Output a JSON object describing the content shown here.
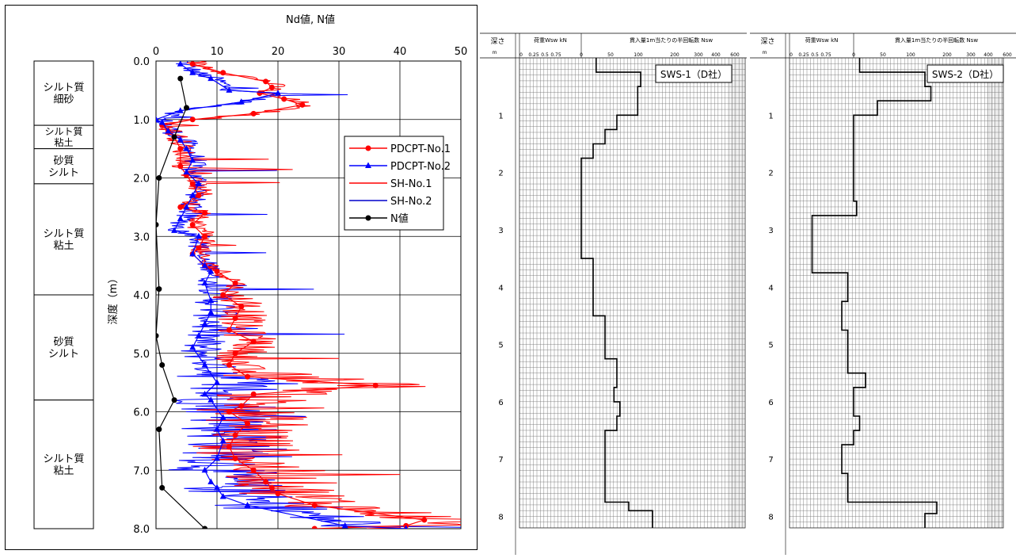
{
  "left_chart": {
    "xlabel": "Nd値, N値",
    "ylabel": "深度（m）",
    "strata": [
      {
        "name": "シルト質\n細砂",
        "top": 0.0,
        "bottom": 1.1
      },
      {
        "name": "シルト質\n粘土",
        "top": 1.1,
        "bottom": 1.5
      },
      {
        "name": "砂質\nシルト",
        "top": 1.5,
        "bottom": 2.1
      },
      {
        "name": "シルト質\n粘土",
        "top": 2.1,
        "bottom": 4.0
      },
      {
        "name": "砂質\nシルト",
        "top": 4.0,
        "bottom": 5.8
      },
      {
        "name": "シルト質\n粘土",
        "top": 5.8,
        "bottom": 8.0
      }
    ],
    "legend": [
      "PDCPT-No.1",
      "PDCPT-No.2",
      "SH-No.1",
      "SH-No.2",
      "N値"
    ]
  },
  "chart_data": [
    {
      "type": "line",
      "title": "",
      "xlabel": "Nd値, N値",
      "ylabel": "深度（m）",
      "xlim": [
        0,
        50
      ],
      "ylim": [
        0,
        8
      ],
      "y_inverted": true,
      "x_ticks": [
        "0",
        "10",
        "20",
        "30",
        "40",
        "50"
      ],
      "y_ticks": [
        "0.0",
        "1.0",
        "2.0",
        "3.0",
        "4.0",
        "5.0",
        "6.0",
        "7.0",
        "8.0"
      ],
      "grid": true,
      "legend_position": "right-upper",
      "colors": {
        "PDCPT-No.1": "#ff0000",
        "PDCPT-No.2": "#0000ff",
        "SH-No.1": "#ff0000",
        "SH-No.2": "#0000cc",
        "N値": "#000000"
      },
      "series": [
        {
          "name": "N値",
          "marker": "circle",
          "points": [
            [
              4,
              0.3
            ],
            [
              5,
              0.8
            ],
            [
              3,
              1.3
            ],
            [
              0.5,
              2.0
            ],
            [
              0,
              2.8
            ],
            [
              0.5,
              3.9
            ],
            [
              0,
              4.7
            ],
            [
              1,
              5.2
            ],
            [
              3,
              5.8
            ],
            [
              0.5,
              6.3
            ],
            [
              1,
              7.3
            ],
            [
              8,
              8.0
            ]
          ]
        },
        {
          "name": "PDCPT-No.1",
          "marker": "circle",
          "points": [
            [
              6,
              0.05
            ],
            [
              11,
              0.2
            ],
            [
              18,
              0.35
            ],
            [
              19,
              0.45
            ],
            [
              17,
              0.55
            ],
            [
              21,
              0.65
            ],
            [
              24,
              0.75
            ],
            [
              16,
              0.9
            ],
            [
              6,
              1.0
            ],
            [
              1,
              1.1
            ],
            [
              2,
              1.2
            ],
            [
              3,
              1.3
            ],
            [
              4,
              1.5
            ],
            [
              4,
              1.8
            ],
            [
              5,
              1.95
            ],
            [
              6,
              2.1
            ],
            [
              7,
              2.3
            ],
            [
              4,
              2.5
            ],
            [
              8,
              2.6
            ],
            [
              6,
              2.8
            ],
            [
              8,
              3.0
            ],
            [
              7,
              3.2
            ],
            [
              6,
              3.3
            ],
            [
              8,
              3.5
            ],
            [
              10,
              3.6
            ],
            [
              13,
              3.8
            ],
            [
              11,
              4.0
            ],
            [
              14,
              4.2
            ],
            [
              13,
              4.4
            ],
            [
              12,
              4.6
            ],
            [
              16,
              4.8
            ],
            [
              13,
              5.0
            ],
            [
              12,
              5.2
            ],
            [
              15,
              5.4
            ],
            [
              36,
              5.55
            ],
            [
              16,
              5.7
            ],
            [
              14,
              5.9
            ],
            [
              12,
              6.0
            ],
            [
              15,
              6.2
            ],
            [
              13,
              6.4
            ],
            [
              12,
              6.6
            ],
            [
              13,
              6.8
            ],
            [
              16,
              7.0
            ],
            [
              18,
              7.2
            ],
            [
              19,
              7.3
            ],
            [
              20,
              7.4
            ],
            [
              26,
              7.6
            ],
            [
              44,
              7.85
            ],
            [
              41,
              7.95
            ],
            [
              26,
              8.0
            ]
          ]
        },
        {
          "name": "PDCPT-No.2",
          "marker": "triangle",
          "points": [
            [
              4,
              0.05
            ],
            [
              6,
              0.2
            ],
            [
              9,
              0.3
            ],
            [
              12,
              0.5
            ],
            [
              20,
              0.55
            ],
            [
              14,
              0.7
            ],
            [
              4,
              0.85
            ],
            [
              0,
              1.0
            ],
            [
              1,
              1.05
            ],
            [
              2,
              1.2
            ],
            [
              4,
              1.35
            ],
            [
              5,
              1.5
            ],
            [
              6,
              1.7
            ],
            [
              5,
              1.9
            ],
            [
              7,
              2.1
            ],
            [
              6,
              2.3
            ],
            [
              5,
              2.5
            ],
            [
              4,
              2.7
            ],
            [
              3,
              2.9
            ],
            [
              7,
              3.0
            ],
            [
              6,
              3.3
            ],
            [
              8,
              3.5
            ],
            [
              9,
              3.6
            ],
            [
              8,
              3.8
            ],
            [
              9,
              4.1
            ],
            [
              9,
              4.3
            ],
            [
              8,
              4.5
            ],
            [
              7,
              4.7
            ],
            [
              6,
              4.9
            ],
            [
              8,
              5.2
            ],
            [
              10,
              5.5
            ],
            [
              8,
              5.7
            ],
            [
              9,
              5.8
            ],
            [
              11,
              6.1
            ],
            [
              10,
              6.3
            ],
            [
              11,
              6.5
            ],
            [
              10,
              6.8
            ],
            [
              8,
              7.0
            ],
            [
              9,
              7.2
            ],
            [
              10,
              7.3
            ],
            [
              11,
              7.45
            ],
            [
              15,
              7.6
            ],
            [
              31,
              7.95
            ],
            [
              41,
              8.0
            ]
          ]
        }
      ]
    },
    {
      "type": "line",
      "title": "SWS-1（D社）",
      "xlabel": "貫入量1m当たりの半回転数 Nsw",
      "ylabel": "深さ",
      "ylim": [
        0,
        8.2
      ],
      "y_inverted": true,
      "load_axis_label": "荷重Wsw kN",
      "load_ticks": [
        "0",
        "0.25",
        "0.5",
        "0.75"
      ],
      "nsw_ticks": [
        "0",
        "50",
        "100",
        "200",
        "300",
        "400",
        "600"
      ],
      "y_ticks": [
        "1",
        "2",
        "3",
        "4",
        "5",
        "6",
        "7",
        "8"
      ],
      "depth_unit": "m",
      "steps": [
        [
          25,
          0.0
        ],
        [
          25,
          0.25
        ],
        [
          100,
          0.25
        ],
        [
          100,
          0.5
        ],
        [
          95,
          0.5
        ],
        [
          95,
          1.0
        ],
        [
          60,
          1.0
        ],
        [
          60,
          1.25
        ],
        [
          40,
          1.25
        ],
        [
          40,
          1.5
        ],
        [
          20,
          1.5
        ],
        [
          20,
          1.75
        ],
        [
          0,
          1.75
        ],
        [
          0,
          3.5
        ],
        [
          20,
          3.5
        ],
        [
          20,
          4.5
        ],
        [
          40,
          4.5
        ],
        [
          40,
          5.25
        ],
        [
          60,
          5.25
        ],
        [
          60,
          5.75
        ],
        [
          55,
          5.75
        ],
        [
          55,
          6.0
        ],
        [
          65,
          6.0
        ],
        [
          65,
          6.25
        ],
        [
          60,
          6.25
        ],
        [
          60,
          6.5
        ],
        [
          40,
          6.5
        ],
        [
          40,
          7.75
        ],
        [
          80,
          7.75
        ],
        [
          80,
          7.9
        ],
        [
          120,
          7.9
        ],
        [
          120,
          8.2
        ]
      ]
    },
    {
      "type": "line",
      "title": "SWS-2（D社）",
      "xlabel": "貫入量1m当たりの半回転数 Nsw",
      "ylabel": "深さ",
      "ylim": [
        0,
        8.2
      ],
      "y_inverted": true,
      "load_axis_label": "荷重Wsw kN",
      "load_ticks": [
        "0",
        "0.25",
        "0.5",
        "0.75"
      ],
      "nsw_ticks": [
        "0",
        "50",
        "100",
        "200",
        "300",
        "400",
        "600"
      ],
      "y_ticks": [
        "1",
        "2",
        "3",
        "4",
        "5",
        "6",
        "7",
        "8"
      ],
      "depth_unit": "m",
      "steps": [
        [
          10,
          0.0
        ],
        [
          10,
          0.25
        ],
        [
          120,
          0.25
        ],
        [
          120,
          0.5
        ],
        [
          130,
          0.5
        ],
        [
          130,
          0.75
        ],
        [
          40,
          0.75
        ],
        [
          40,
          1.0
        ],
        [
          0,
          1.0
        ],
        [
          0,
          2.5
        ],
        [
          5,
          2.5
        ],
        [
          5,
          2.75
        ],
        [
          -70,
          2.75
        ],
        [
          -70,
          3.75
        ],
        [
          -10,
          3.75
        ],
        [
          -10,
          4.25
        ],
        [
          -20,
          4.25
        ],
        [
          -20,
          4.75
        ],
        [
          -10,
          4.75
        ],
        [
          -10,
          5.5
        ],
        [
          20,
          5.5
        ],
        [
          20,
          5.75
        ],
        [
          0,
          5.75
        ],
        [
          0,
          6.25
        ],
        [
          10,
          6.25
        ],
        [
          10,
          6.5
        ],
        [
          0,
          6.5
        ],
        [
          0,
          6.75
        ],
        [
          -20,
          6.75
        ],
        [
          -20,
          7.25
        ],
        [
          -10,
          7.25
        ],
        [
          -10,
          7.75
        ],
        [
          140,
          7.75
        ],
        [
          140,
          7.95
        ],
        [
          120,
          7.95
        ],
        [
          120,
          8.2
        ]
      ]
    }
  ],
  "sws_header": {
    "depth_label": "深さ",
    "depth_unit": "m",
    "load_label": "荷重Wsw kN",
    "nsw_label": "貫入量1m当たりの半回転数 Nsw"
  }
}
